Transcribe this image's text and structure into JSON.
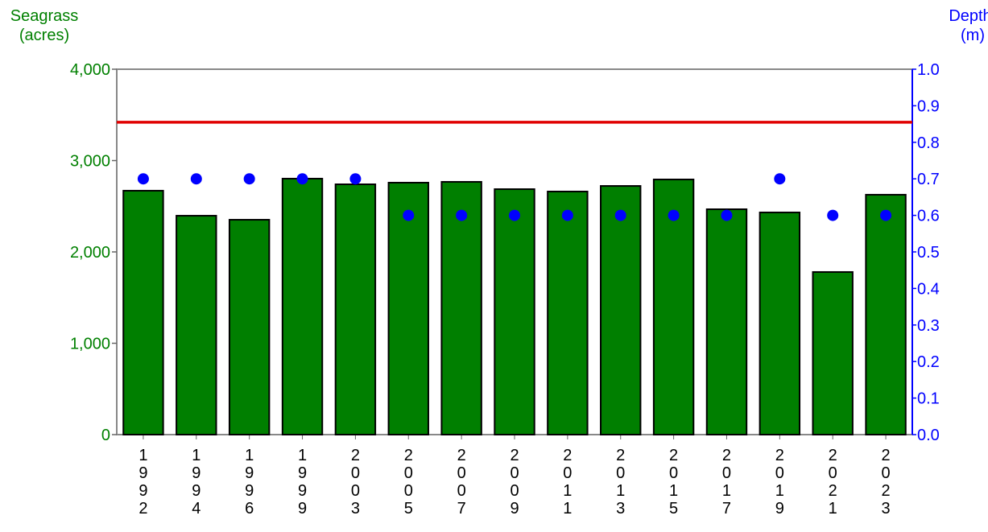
{
  "chart_data": {
    "type": "bar",
    "y_label": "Seagrass (acres)",
    "y2_label": "Depth (m)",
    "categories": [
      "1992",
      "1994",
      "1996",
      "1999",
      "2003",
      "2005",
      "2007",
      "2009",
      "2011",
      "2013",
      "2015",
      "2017",
      "2019",
      "2021",
      "2023"
    ],
    "series": [
      {
        "name": "Seagrass",
        "type": "bar",
        "color": "#007f00",
        "values": [
          2670,
          2396,
          2352,
          2802,
          2740,
          2758,
          2767,
          2687,
          2661,
          2722,
          2793,
          2467,
          2432,
          1780,
          2626
        ]
      },
      {
        "name": "Depth",
        "type": "scatter",
        "axis": "y2",
        "color": "#0000ff",
        "values": [
          0.7,
          0.7,
          0.7,
          0.7,
          0.7,
          0.6,
          0.6,
          0.6,
          0.6,
          0.6,
          0.6,
          0.6,
          0.7,
          0.6,
          0.6
        ]
      }
    ],
    "reference_line": {
      "value": 3420,
      "color": "#e00000"
    },
    "ylim": [
      0,
      4000
    ],
    "yticks": [
      0,
      {
        "value": 1000,
        "label": "1,000"
      },
      {
        "value": 2000,
        "label": "2,000"
      },
      {
        "value": 3000,
        "label": "3,000"
      },
      {
        "value": 4000,
        "label": "4,000"
      }
    ],
    "y2lim": [
      0,
      1
    ],
    "y2ticks": [
      {
        "value": 0,
        "label": "0.0"
      },
      0.1,
      0.2,
      0.3,
      0.4,
      0.5,
      0.6,
      0.7,
      0.8,
      0.9,
      {
        "value": 1,
        "label": "1.0"
      }
    ],
    "y_label_color": "#008000",
    "y2_label_color": "#0000ff"
  }
}
